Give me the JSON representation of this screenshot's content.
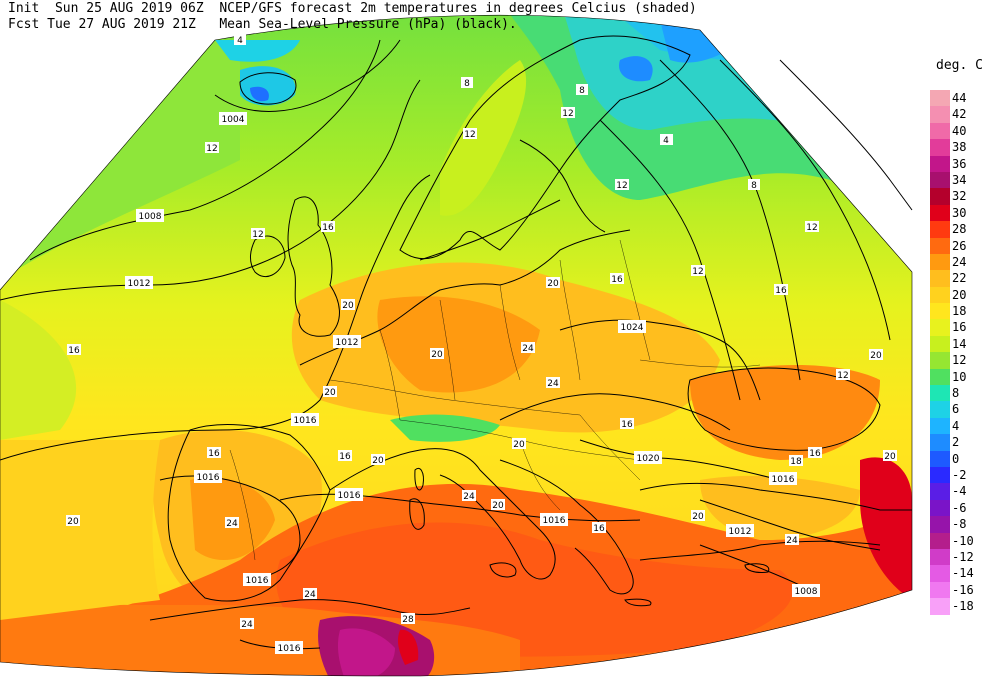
{
  "header": {
    "line1_left": "Init  Sun 25 AUG 2019 06Z",
    "line1_right": "NCEP/GFS forecast 2m temperatures in degrees Celcius (shaded)",
    "line2_left": "Fcst Tue 27 AUG 2019 21Z",
    "line2_right": "Mean Sea-Level Pressure (hPa) (black)."
  },
  "colorbar": {
    "title": "deg. C",
    "entries": [
      {
        "label": "44",
        "color": "#f4a7b3"
      },
      {
        "label": "42",
        "color": "#f48fb1"
      },
      {
        "label": "40",
        "color": "#f06aa8"
      },
      {
        "label": "38",
        "color": "#e23c9a"
      },
      {
        "label": "36",
        "color": "#c2168a"
      },
      {
        "label": "34",
        "color": "#a8106e"
      },
      {
        "label": "32",
        "color": "#b4002c"
      },
      {
        "label": "30",
        "color": "#e0001a"
      },
      {
        "label": "28",
        "color": "#ff3a10"
      },
      {
        "label": "26",
        "color": "#ff6a10"
      },
      {
        "label": "24",
        "color": "#ff9a10"
      },
      {
        "label": "22",
        "color": "#ffbe1e"
      },
      {
        "label": "20",
        "color": "#ffd21e"
      },
      {
        "label": "18",
        "color": "#ffe61e"
      },
      {
        "label": "16",
        "color": "#e8f21e"
      },
      {
        "label": "14",
        "color": "#c8f01e"
      },
      {
        "label": "12",
        "color": "#96e632"
      },
      {
        "label": "10",
        "color": "#50e060"
      },
      {
        "label": "8",
        "color": "#1ee6b4"
      },
      {
        "label": "6",
        "color": "#1ed2e6"
      },
      {
        "label": "4",
        "color": "#1eb4ff"
      },
      {
        "label": "2",
        "color": "#1e8cff"
      },
      {
        "label": "0",
        "color": "#1e5aff"
      },
      {
        "label": "-2",
        "color": "#2a2aff"
      },
      {
        "label": "-4",
        "color": "#5a1ee6"
      },
      {
        "label": "-6",
        "color": "#7a14c8"
      },
      {
        "label": "-8",
        "color": "#9614aa"
      },
      {
        "label": "-10",
        "color": "#b41e8c"
      },
      {
        "label": "-12",
        "color": "#d03cc8"
      },
      {
        "label": "-14",
        "color": "#e45ae4"
      },
      {
        "label": "-16",
        "color": "#f078f0"
      },
      {
        "label": "-18",
        "color": "#f8a0f8"
      }
    ]
  },
  "isobars": [
    {
      "label": "1004"
    },
    {
      "label": "1008"
    },
    {
      "label": "1012"
    },
    {
      "label": "1016"
    },
    {
      "label": "1020"
    },
    {
      "label": "1024"
    },
    {
      "label": "1016"
    },
    {
      "label": "1012"
    },
    {
      "label": "1016"
    },
    {
      "label": "1016"
    },
    {
      "label": "1016"
    },
    {
      "label": "1012"
    },
    {
      "label": "1008"
    },
    {
      "label": "1016"
    },
    {
      "label": "1016"
    }
  ],
  "temp_labels": [
    "4",
    "8",
    "4",
    "8",
    "12",
    "12",
    "12",
    "16",
    "12",
    "16",
    "20",
    "20",
    "20",
    "20",
    "20",
    "20",
    "24",
    "20",
    "24",
    "24",
    "20",
    "16",
    "16",
    "16",
    "20",
    "24",
    "24",
    "28",
    "24",
    "20",
    "12",
    "16",
    "16",
    "20",
    "18",
    "24",
    "16",
    "16",
    "8",
    "12",
    "12",
    "12",
    "4"
  ]
}
